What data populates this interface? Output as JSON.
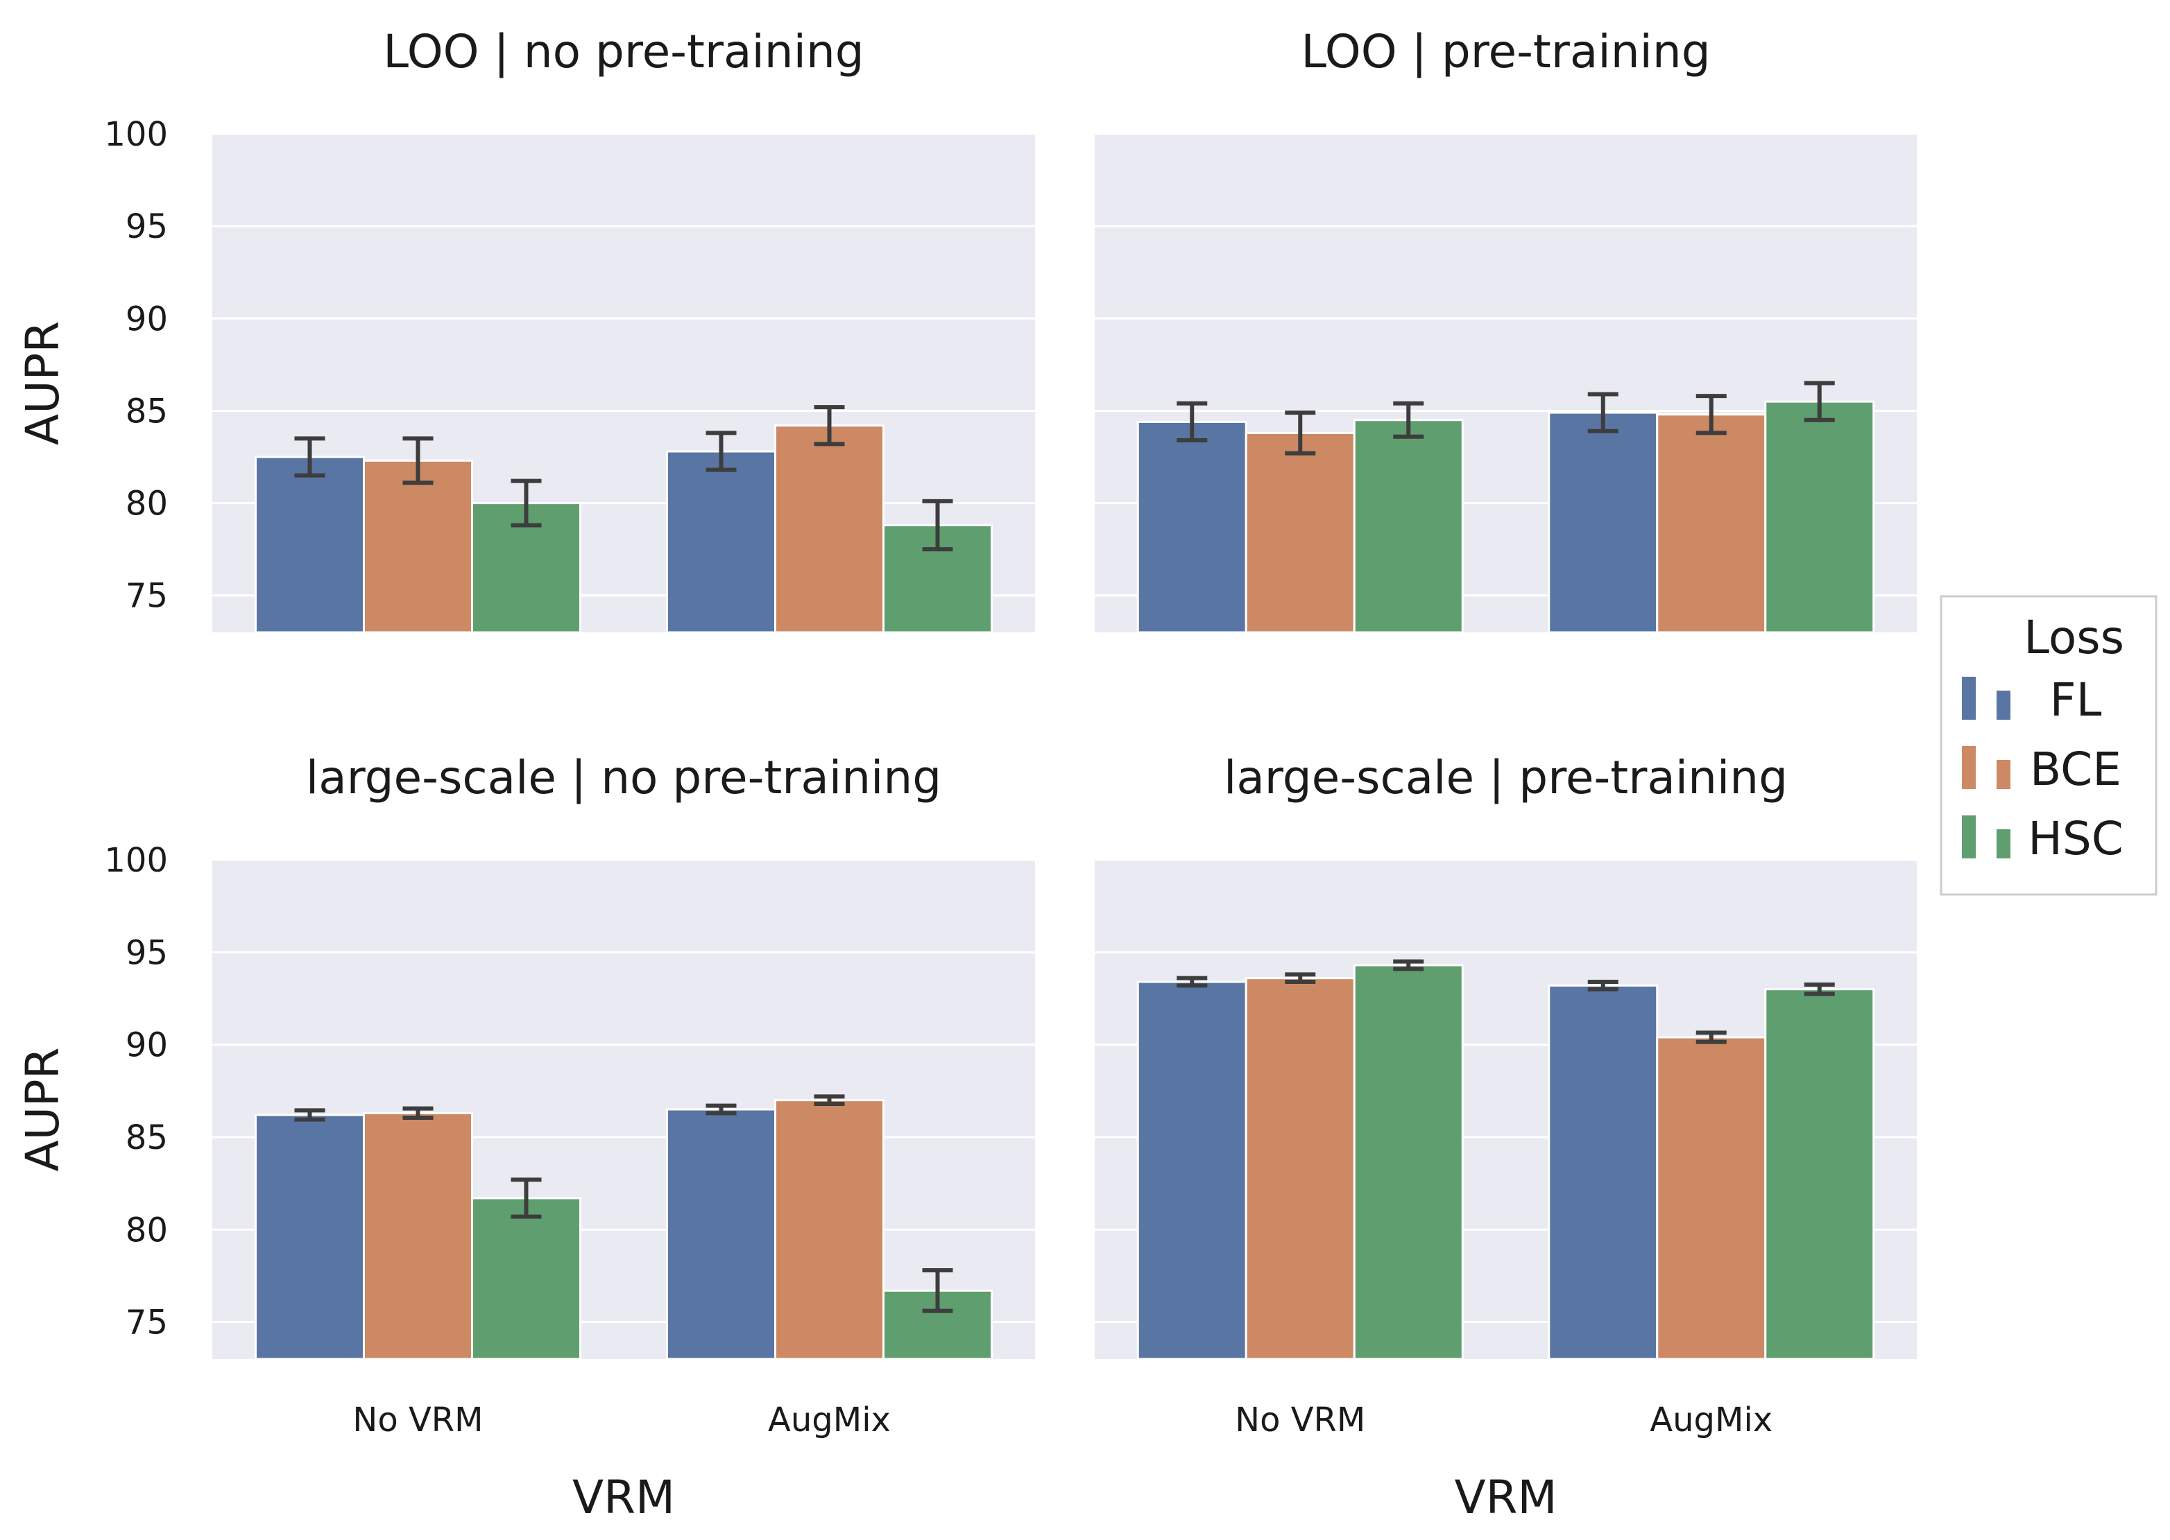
{
  "colors": {
    "panel_bg": "#eaeaf2",
    "grid": "#ffffff",
    "error_bar": "#3d3d3d",
    "FL": "#5975a4",
    "BCE": "#cc8963",
    "HSC": "#5f9e6e"
  },
  "legend": {
    "title": "Loss",
    "entries": [
      "FL",
      "BCE",
      "HSC"
    ]
  },
  "chart_data": {
    "type": "bar",
    "ylabel": "AUPR",
    "xlabel": "VRM",
    "ylim": [
      73,
      100
    ],
    "yticks": [
      75,
      80,
      85,
      90,
      95,
      100
    ],
    "categories": [
      "No VRM",
      "AugMix"
    ],
    "panels": [
      {
        "title": "LOO | no pre-training",
        "series": [
          {
            "name": "FL",
            "values": [
              82.5,
              82.8
            ],
            "errors": [
              1.0,
              1.0
            ]
          },
          {
            "name": "BCE",
            "values": [
              82.3,
              84.2
            ],
            "errors": [
              1.2,
              1.0
            ]
          },
          {
            "name": "HSC",
            "values": [
              80.0,
              78.8
            ],
            "errors": [
              1.2,
              1.3
            ]
          }
        ]
      },
      {
        "title": "LOO | pre-training",
        "series": [
          {
            "name": "FL",
            "values": [
              84.4,
              84.9
            ],
            "errors": [
              1.0,
              1.0
            ]
          },
          {
            "name": "BCE",
            "values": [
              83.8,
              84.8
            ],
            "errors": [
              1.1,
              1.0
            ]
          },
          {
            "name": "HSC",
            "values": [
              84.5,
              85.5
            ],
            "errors": [
              0.9,
              1.0
            ]
          }
        ]
      },
      {
        "title": "large-scale | no pre-training",
        "series": [
          {
            "name": "FL",
            "values": [
              86.2,
              86.5
            ],
            "errors": [
              0.25,
              0.2
            ]
          },
          {
            "name": "BCE",
            "values": [
              86.3,
              87.0
            ],
            "errors": [
              0.25,
              0.2
            ]
          },
          {
            "name": "HSC",
            "values": [
              81.7,
              76.7
            ],
            "errors": [
              1.0,
              1.1
            ]
          }
        ]
      },
      {
        "title": "large-scale | pre-training",
        "series": [
          {
            "name": "FL",
            "values": [
              93.4,
              93.2
            ],
            "errors": [
              0.2,
              0.2
            ]
          },
          {
            "name": "BCE",
            "values": [
              93.6,
              90.4
            ],
            "errors": [
              0.2,
              0.25
            ]
          },
          {
            "name": "HSC",
            "values": [
              94.3,
              93.0
            ],
            "errors": [
              0.2,
              0.25
            ]
          }
        ]
      }
    ]
  }
}
